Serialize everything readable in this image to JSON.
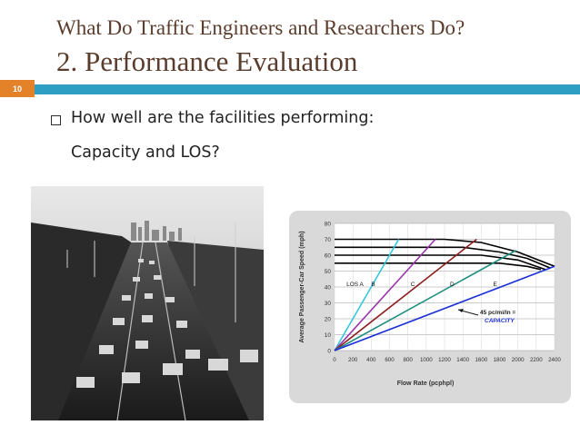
{
  "slide": {
    "title_line1": "What Do Traffic Engineers and Researchers Do?",
    "title_line2": "2. Performance Evaluation",
    "slide_number": "10",
    "bullet_text": "How well are the facilities performing:",
    "sub_text": "Capacity and LOS?"
  },
  "colors": {
    "title": "#5a3c2c",
    "accent_bar": "#2e9fc3",
    "slide_number_box": "#e4822a"
  },
  "chart_data": {
    "type": "line",
    "xlabel": "Flow Rate (pcphpl)",
    "ylabel": "Average Passenger-Car Speed (mph)",
    "xlim": [
      0,
      2400
    ],
    "ylim": [
      0,
      80
    ],
    "x_ticks": [
      "0",
      "200",
      "400",
      "600",
      "800",
      "1000",
      "1200",
      "1400",
      "1600",
      "1800",
      "2000",
      "2200",
      "2400"
    ],
    "y_ticks": [
      "0",
      "10",
      "20",
      "30",
      "40",
      "50",
      "60",
      "70",
      "80"
    ],
    "speed_flow_curves": [
      {
        "free_flow_speed": 70,
        "x": [
          0,
          1200,
          1600,
          2000,
          2400
        ],
        "y": [
          70,
          70,
          68,
          62,
          53
        ]
      },
      {
        "free_flow_speed": 65,
        "x": [
          0,
          1400,
          1800,
          2100,
          2350
        ],
        "y": [
          65,
          65,
          62,
          58,
          52
        ]
      },
      {
        "free_flow_speed": 60,
        "x": [
          0,
          1600,
          2000,
          2300
        ],
        "y": [
          60,
          60,
          57,
          51
        ]
      },
      {
        "free_flow_speed": 55,
        "x": [
          0,
          1800,
          2100,
          2250
        ],
        "y": [
          55,
          55,
          53,
          51
        ]
      }
    ],
    "los_boundaries": [
      {
        "label": "LOS A",
        "color": "#33c8dd",
        "x": [
          0,
          700
        ],
        "y": [
          0,
          70
        ]
      },
      {
        "label": "B",
        "color": "#9933aa",
        "x": [
          0,
          1100
        ],
        "y": [
          0,
          70
        ]
      },
      {
        "label": "C",
        "color": "#8b2020",
        "x": [
          0,
          1550
        ],
        "y": [
          0,
          70
        ]
      },
      {
        "label": "D",
        "color": "#1f8f80",
        "x": [
          0,
          1980
        ],
        "y": [
          0,
          63
        ]
      },
      {
        "label": "E",
        "color": "#1a2fd6",
        "x": [
          0,
          2400
        ],
        "y": [
          0,
          53
        ]
      }
    ],
    "annotation": {
      "line1": "45 pc/mi/ln =",
      "line2": "CAPACITY"
    },
    "grid": true
  }
}
